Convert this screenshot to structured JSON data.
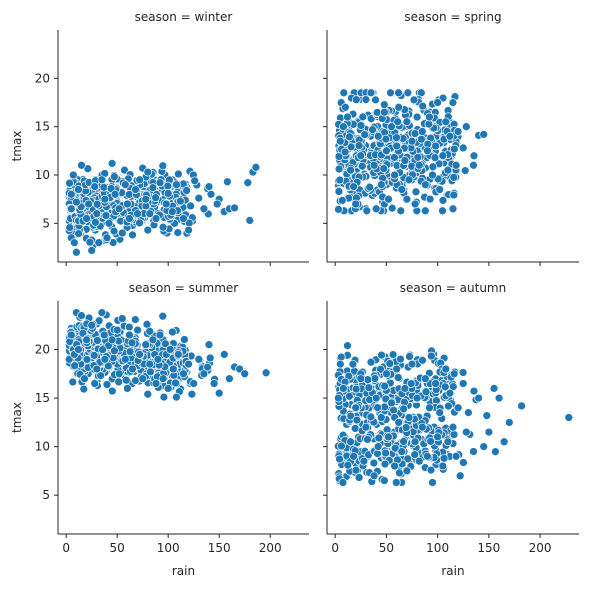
{
  "chart_data": {
    "type": "scatter",
    "facet_layout": "2x2, shared x and y axes",
    "x_label": "rain",
    "y_label": "tmax",
    "xlim": [
      -8,
      238
    ],
    "ylim": [
      1,
      25
    ],
    "x_ticks": [
      0,
      50,
      100,
      150,
      200
    ],
    "y_ticks": [
      5,
      10,
      15,
      20
    ],
    "grid": false,
    "legend": "none",
    "marker_color": "#1f77b4",
    "panels": [
      {
        "title": "season = winter",
        "approx_point_count": 560,
        "x_range": [
          3,
          188
        ],
        "y_range": [
          2.0,
          11.2
        ],
        "points": [
          [
            5,
            3.5
          ],
          [
            8,
            3
          ],
          [
            10,
            2
          ],
          [
            25,
            2.2
          ],
          [
            32,
            3
          ],
          [
            40,
            3.5
          ],
          [
            47,
            4.2
          ],
          [
            55,
            4
          ],
          [
            65,
            3.8
          ],
          [
            80,
            4.3
          ],
          [
            95,
            4.6
          ],
          [
            120,
            4.3
          ],
          [
            155,
            6.2
          ],
          [
            160,
            6.5
          ],
          [
            165,
            6.6
          ],
          [
            180,
            5.3
          ],
          [
            5,
            8
          ],
          [
            7,
            10
          ],
          [
            15,
            11
          ],
          [
            45,
            11.2
          ],
          [
            75,
            10.7
          ],
          [
            80,
            10.3
          ],
          [
            110,
            10.1
          ],
          [
            140,
            8.8
          ],
          [
            150,
            7.5
          ],
          [
            158,
            9.3
          ],
          [
            178,
            9.2
          ],
          [
            183,
            10.3
          ],
          [
            186,
            10.8
          ],
          [
            5,
            6.5
          ],
          [
            10,
            7.2
          ],
          [
            12,
            8.5
          ],
          [
            20,
            5.5
          ],
          [
            22,
            7
          ],
          [
            28,
            8.8
          ],
          [
            30,
            6
          ],
          [
            35,
            9.5
          ],
          [
            38,
            7.5
          ],
          [
            42,
            5
          ],
          [
            48,
            8
          ],
          [
            52,
            6.5
          ],
          [
            58,
            9
          ],
          [
            60,
            7
          ],
          [
            62,
            5.5
          ],
          [
            68,
            8.5
          ],
          [
            70,
            6
          ],
          [
            72,
            9.5
          ],
          [
            78,
            7.5
          ],
          [
            82,
            6
          ],
          [
            85,
            8.7
          ],
          [
            88,
            5.5
          ],
          [
            92,
            9.2
          ],
          [
            98,
            7
          ],
          [
            100,
            8.1
          ],
          [
            104,
            6.2
          ],
          [
            108,
            9
          ],
          [
            112,
            7.3
          ],
          [
            115,
            5.5
          ],
          [
            118,
            8.4
          ],
          [
            122,
            6.8
          ],
          [
            126,
            9.4
          ],
          [
            130,
            7.6
          ],
          [
            135,
            6.5
          ],
          [
            142,
            8
          ],
          [
            148,
            7
          ]
        ]
      },
      {
        "title": "season = spring",
        "approx_point_count": 560,
        "x_range": [
          3,
          148
        ],
        "y_range": [
          6.3,
          18.5
        ],
        "points": [
          [
            5,
            13.5
          ],
          [
            8,
            15
          ],
          [
            10,
            17
          ],
          [
            12,
            16
          ],
          [
            15,
            10.5
          ],
          [
            18,
            8.8
          ],
          [
            20,
            7
          ],
          [
            25,
            12
          ],
          [
            30,
            17.8
          ],
          [
            35,
            18.5
          ],
          [
            38,
            11
          ],
          [
            40,
            6.5
          ],
          [
            42,
            14
          ],
          [
            45,
            9
          ],
          [
            48,
            16.5
          ],
          [
            50,
            12.5
          ],
          [
            52,
            7.5
          ],
          [
            55,
            15
          ],
          [
            58,
            10
          ],
          [
            60,
            13
          ],
          [
            62,
            17
          ],
          [
            65,
            8.5
          ],
          [
            68,
            11.5
          ],
          [
            70,
            15.5
          ],
          [
            72,
            9.5
          ],
          [
            75,
            13.5
          ],
          [
            78,
            7
          ],
          [
            80,
            16
          ],
          [
            82,
            11
          ],
          [
            85,
            14.5
          ],
          [
            88,
            9
          ],
          [
            90,
            12.5
          ],
          [
            92,
            16
          ],
          [
            95,
            10
          ],
          [
            98,
            13
          ],
          [
            100,
            17.5
          ],
          [
            102,
            8.5
          ],
          [
            105,
            12
          ],
          [
            108,
            15.5
          ],
          [
            110,
            10.5
          ],
          [
            112,
            14
          ],
          [
            115,
            6.5
          ],
          [
            118,
            11
          ],
          [
            120,
            14.5
          ],
          [
            125,
            12.8
          ],
          [
            128,
            15
          ],
          [
            135,
            11
          ],
          [
            145,
            14.2
          ],
          [
            88,
            6.3
          ],
          [
            70,
            7.5
          ]
        ]
      },
      {
        "title": "season = summer",
        "approx_point_count": 560,
        "x_range": [
          3,
          196
        ],
        "y_range": [
          15.1,
          23.9
        ],
        "points": [
          [
            3,
            19
          ],
          [
            5,
            21.5
          ],
          [
            8,
            19.5
          ],
          [
            10,
            23.8
          ],
          [
            12,
            20
          ],
          [
            15,
            23.5
          ],
          [
            18,
            17
          ],
          [
            20,
            21
          ],
          [
            25,
            22.5
          ],
          [
            28,
            16.5
          ],
          [
            30,
            18
          ],
          [
            35,
            23.8
          ],
          [
            38,
            19
          ],
          [
            40,
            16.4
          ],
          [
            45,
            21
          ],
          [
            50,
            22
          ],
          [
            52,
            17.5
          ],
          [
            55,
            23.2
          ],
          [
            58,
            19
          ],
          [
            60,
            16
          ],
          [
            62,
            21.5
          ],
          [
            65,
            18
          ],
          [
            68,
            16.8
          ],
          [
            70,
            22
          ],
          [
            72,
            19.5
          ],
          [
            75,
            17
          ],
          [
            78,
            20.5
          ],
          [
            80,
            15.4
          ],
          [
            82,
            18.5
          ],
          [
            85,
            21
          ],
          [
            88,
            16.5
          ],
          [
            90,
            19
          ],
          [
            92,
            21.5
          ],
          [
            95,
            17
          ],
          [
            98,
            19.5
          ],
          [
            100,
            16
          ],
          [
            102,
            20
          ],
          [
            105,
            18
          ],
          [
            108,
            15.1
          ],
          [
            110,
            19.5
          ],
          [
            115,
            17.5
          ],
          [
            120,
            18.5
          ],
          [
            125,
            16.5
          ],
          [
            130,
            19
          ],
          [
            135,
            17.5
          ],
          [
            140,
            20.5
          ],
          [
            145,
            16.5
          ],
          [
            150,
            15.5
          ],
          [
            155,
            19.5
          ],
          [
            160,
            17
          ],
          [
            165,
            18.2
          ],
          [
            170,
            18
          ],
          [
            175,
            17.5
          ],
          [
            196,
            17.6
          ]
        ]
      },
      {
        "title": "season = autumn",
        "approx_point_count": 560,
        "x_range": [
          3,
          228
        ],
        "y_range": [
          6.3,
          20.4
        ],
        "points": [
          [
            3,
            15
          ],
          [
            5,
            18.5
          ],
          [
            8,
            16
          ],
          [
            12,
            20.4
          ],
          [
            15,
            10.5
          ],
          [
            18,
            9
          ],
          [
            20,
            14
          ],
          [
            25,
            17
          ],
          [
            28,
            8.5
          ],
          [
            30,
            12
          ],
          [
            35,
            18.7
          ],
          [
            38,
            7
          ],
          [
            40,
            15
          ],
          [
            42,
            10
          ],
          [
            45,
            13
          ],
          [
            48,
            6.5
          ],
          [
            50,
            17.5
          ],
          [
            52,
            11
          ],
          [
            55,
            14.5
          ],
          [
            58,
            8
          ],
          [
            60,
            18
          ],
          [
            62,
            12.5
          ],
          [
            65,
            9.5
          ],
          [
            68,
            16
          ],
          [
            70,
            7.5
          ],
          [
            72,
            13
          ],
          [
            75,
            18.5
          ],
          [
            78,
            10.5
          ],
          [
            80,
            15
          ],
          [
            82,
            8.5
          ],
          [
            85,
            12
          ],
          [
            88,
            17
          ],
          [
            90,
            9
          ],
          [
            92,
            14
          ],
          [
            95,
            6.3
          ],
          [
            98,
            16.5
          ],
          [
            100,
            11
          ],
          [
            102,
            13.5
          ],
          [
            105,
            8
          ],
          [
            108,
            18
          ],
          [
            110,
            10.5
          ],
          [
            112,
            15.5
          ],
          [
            115,
            12
          ],
          [
            118,
            9
          ],
          [
            120,
            14
          ],
          [
            122,
            7
          ],
          [
            125,
            16.5
          ],
          [
            128,
            11.5
          ],
          [
            130,
            13.5
          ],
          [
            135,
            9.5
          ],
          [
            140,
            15
          ],
          [
            145,
            10
          ],
          [
            148,
            13.2
          ],
          [
            150,
            11.5
          ],
          [
            155,
            16
          ],
          [
            160,
            15
          ],
          [
            165,
            10.5
          ],
          [
            170,
            12.5
          ],
          [
            182,
            14.2
          ],
          [
            228,
            13
          ]
        ]
      }
    ]
  }
}
